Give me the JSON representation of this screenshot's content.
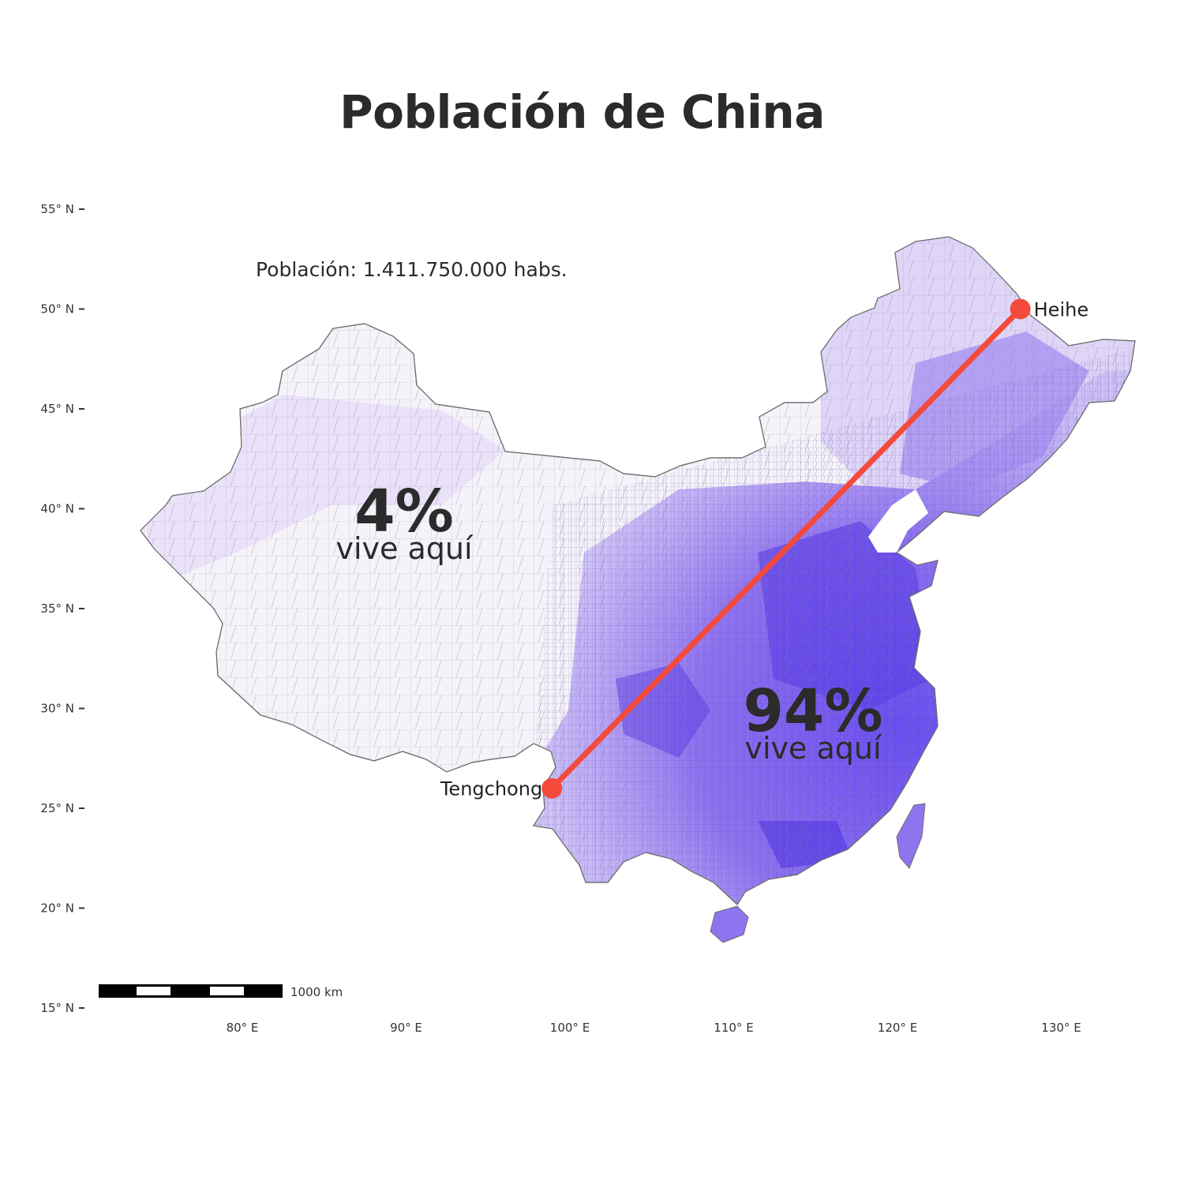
{
  "title": "Población de China",
  "population_note": "Población: 1.411.750.000 habs.",
  "annotations": {
    "west": {
      "percent": "4%",
      "text": "vive aquí"
    },
    "east": {
      "percent": "94%",
      "text": "vive aquí"
    }
  },
  "cities": [
    {
      "name": "Heihe",
      "lon": 127.5,
      "lat": 50.0
    },
    {
      "name": "Tengchong",
      "lon": 98.9,
      "lat": 26.0
    }
  ],
  "scale_bar": {
    "label": "1000 km"
  },
  "axes": {
    "lat_ticks": [
      {
        "value": 55,
        "label": "55° N"
      },
      {
        "value": 50,
        "label": "50° N"
      },
      {
        "value": 45,
        "label": "45° N"
      },
      {
        "value": 40,
        "label": "40° N"
      },
      {
        "value": 35,
        "label": "35° N"
      },
      {
        "value": 30,
        "label": "30° N"
      },
      {
        "value": 25,
        "label": "25° N"
      },
      {
        "value": 20,
        "label": "20° N"
      },
      {
        "value": 15,
        "label": "15° N"
      }
    ],
    "lon_ticks": [
      {
        "value": 80,
        "label": "80° E"
      },
      {
        "value": 90,
        "label": "90° E"
      },
      {
        "value": 100,
        "label": "100° E"
      },
      {
        "value": 110,
        "label": "110° E"
      },
      {
        "value": 120,
        "label": "120° E"
      },
      {
        "value": 130,
        "label": "130° E"
      }
    ]
  },
  "colors": {
    "line": "#f34a3b",
    "low_density": "#f4f2f8",
    "mid_density": "#b9a4f2",
    "high_density": "#7a5bee",
    "very_high_density": "#3c2ce0",
    "border": "#6e6e6e"
  }
}
